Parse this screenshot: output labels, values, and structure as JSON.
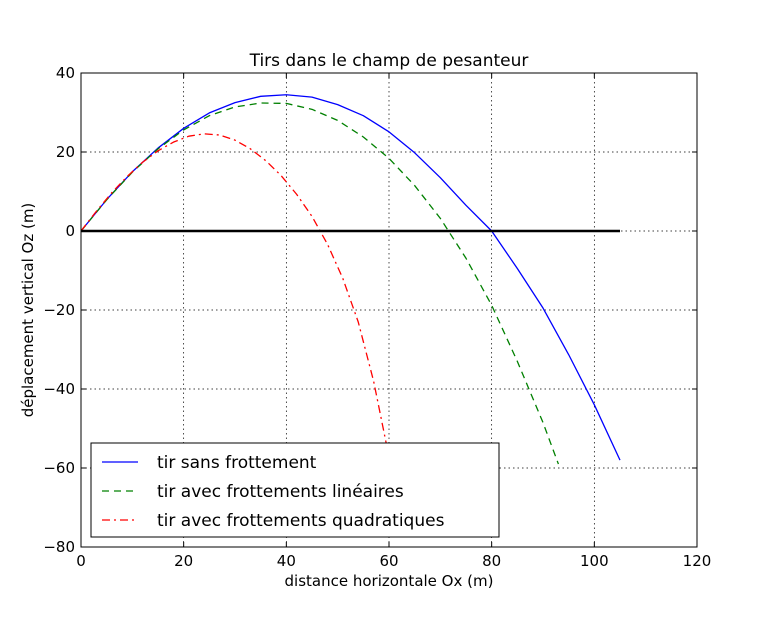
{
  "chart_data": {
    "type": "line",
    "title": "Tirs dans le champ de pesanteur",
    "xlabel": "distance horizontale Ox (m)",
    "ylabel": "déplacement vertical Oz (m)",
    "xlim": [
      0,
      120
    ],
    "ylim": [
      -80,
      40
    ],
    "xticks": [
      "0",
      "20",
      "40",
      "60",
      "80",
      "100",
      "120"
    ],
    "yticks": [
      "40",
      "20",
      "0",
      "−20",
      "−40",
      "−60",
      "−80"
    ],
    "grid": true,
    "legend_position": "lower-left",
    "series": [
      {
        "name": "tir sans frottement",
        "color": "#0000ff",
        "style": "solid",
        "x": [
          0,
          5,
          10,
          15,
          20,
          25,
          30,
          35,
          40,
          45,
          50,
          55,
          60,
          65,
          70,
          75,
          80,
          85,
          90,
          95,
          100,
          105
        ],
        "y": [
          0,
          7.95,
          15.0,
          21.0,
          26.0,
          29.9,
          32.5,
          34.1,
          34.5,
          33.9,
          32.0,
          29.2,
          25.1,
          19.8,
          13.5,
          6.5,
          0,
          -9.5,
          -19.5,
          -31.3,
          -44,
          -58
        ]
      },
      {
        "name": "tir avec frottements linéaires",
        "color": "#008000",
        "style": "dashed",
        "x": [
          0,
          5,
          10,
          15,
          20,
          25,
          30,
          35,
          40,
          45,
          50,
          55,
          60,
          65,
          70,
          75,
          80,
          85,
          90,
          93
        ],
        "y": [
          0,
          7.9,
          14.9,
          20.8,
          25.6,
          29.2,
          31.4,
          32.4,
          32.3,
          30.8,
          28.0,
          23.8,
          18.4,
          11.5,
          3.2,
          -6.9,
          -18.8,
          -33,
          -48.5,
          -59
        ]
      },
      {
        "name": "tir avec frottements quadratiques",
        "color": "#ff0000",
        "style": "dashdot",
        "x": [
          0,
          3,
          6,
          9,
          12,
          15,
          18,
          21,
          24,
          27,
          30,
          33,
          36,
          39,
          42,
          45,
          48,
          51,
          54,
          57,
          59.5
        ],
        "y": [
          0,
          5.0,
          9.7,
          13.8,
          17.4,
          20.3,
          22.5,
          24.0,
          24.6,
          24.3,
          23.0,
          20.8,
          17.8,
          14.0,
          9.3,
          3.7,
          -3.3,
          -12.0,
          -23.0,
          -38.0,
          -54.0
        ]
      }
    ],
    "reference_line": {
      "color": "#000000",
      "x": [
        0,
        105
      ],
      "y": [
        0,
        0
      ]
    }
  }
}
